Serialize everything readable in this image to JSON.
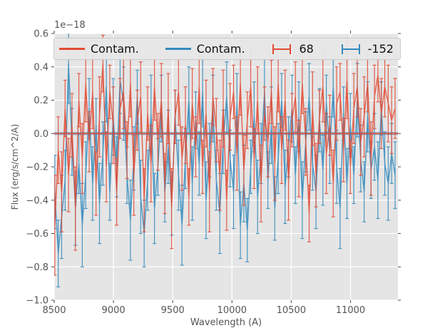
{
  "figure": {
    "offset_text": "1e−18"
  },
  "axes": {
    "xlabel": "Wavelength (A)",
    "ylabel": "Flux (erg/s/cm^2/A)",
    "xlim": [
      8500,
      11400
    ],
    "ylim": [
      -1.0,
      0.6
    ],
    "xticks": [
      8500,
      9000,
      9500,
      10000,
      10500,
      11000
    ],
    "xtick_labels": [
      "8500",
      "9000",
      "9500",
      "10000",
      "10500",
      "11000"
    ],
    "yticks": [
      0.6,
      0.4,
      0.2,
      0.0,
      -0.2,
      -0.4,
      -0.6,
      -0.8,
      -1.0
    ],
    "ytick_labels": [
      "0.6",
      "0.4",
      "0.2",
      "0.0",
      "−0.2",
      "−0.4",
      "−0.6",
      "−0.8",
      "−1.0"
    ],
    "background": "#e5e5e5",
    "grid_color": "#ffffff",
    "tick_color": "#555555",
    "text_color": "#555555"
  },
  "legend": {
    "items": [
      {
        "label": "Contam.",
        "color": "#e24a33",
        "glyph": "line"
      },
      {
        "label": "Contam.",
        "color": "#348abd",
        "glyph": "line"
      },
      {
        "label": "68",
        "color": "#e24a33",
        "glyph": "errorbar"
      },
      {
        "label": "-152",
        "color": "#348abd",
        "glyph": "errorbar"
      }
    ]
  },
  "chart_data": {
    "type": "line",
    "title": "",
    "xlabel": "Wavelength (A)",
    "ylabel": "Flux (erg/s/cm^2/A)",
    "y_unit_multiplier": "1e−18",
    "xlim": [
      8500,
      11400
    ],
    "ylim": [
      -1.0,
      0.6
    ],
    "grid": true,
    "legend_position": "upper center, horizontal, 4 columns",
    "x": [
      8505,
      8534,
      8563,
      8592,
      8621,
      8650,
      8679,
      8708,
      8737,
      8766,
      8795,
      8824,
      8853,
      8882,
      8911,
      8940,
      8969,
      8998,
      9027,
      9056,
      9085,
      9114,
      9143,
      9172,
      9201,
      9230,
      9259,
      9288,
      9317,
      9346,
      9375,
      9404,
      9433,
      9462,
      9491,
      9520,
      9549,
      9578,
      9607,
      9636,
      9665,
      9694,
      9723,
      9752,
      9781,
      9810,
      9839,
      9868,
      9897,
      9926,
      9955,
      9984,
      10013,
      10042,
      10071,
      10100,
      10129,
      10158,
      10187,
      10216,
      10245,
      10274,
      10303,
      10332,
      10361,
      10390,
      10419,
      10448,
      10477,
      10506,
      10535,
      10564,
      10593,
      10622,
      10651,
      10680,
      10709,
      10738,
      10767,
      10796,
      10825,
      10854,
      10883,
      10912,
      10941,
      10970,
      10999,
      11028,
      11057,
      11086,
      11115,
      11144,
      11173,
      11202,
      11231,
      11260,
      11289,
      11318,
      11347,
      11376
    ],
    "series": [
      {
        "name": "Contam.",
        "style": "flat-line",
        "color": "#e24a33",
        "value": 0.0,
        "linewidth": 2.2,
        "opacity": 0.75
      },
      {
        "name": "Contam.",
        "style": "flat-line",
        "color": "#348abd",
        "value": 0.0,
        "linewidth": 4,
        "opacity": 0.5
      },
      {
        "name": "68",
        "style": "errorbar",
        "color": "#e24a33",
        "y": [
          -0.55,
          -0.1,
          -0.35,
          0.15,
          -0.25,
          0.05,
          -0.45,
          0.2,
          -0.15,
          0.3,
          -0.05,
          0.25,
          -0.3,
          0.1,
          0.42,
          -0.2,
          0.25,
          0.05,
          -0.35,
          0.15,
          0.25,
          -0.1,
          0.3,
          -0.25,
          0.08,
          0.22,
          -0.4,
          0.12,
          -0.18,
          0.28,
          -0.05,
          0.2,
          -0.3,
          0.15,
          -0.45,
          0.1,
          0.25,
          -0.15,
          0.05,
          -0.38,
          0.18,
          -0.08,
          0.28,
          -0.2,
          0.12,
          -0.35,
          0.22,
          0.02,
          -0.25,
          0.15,
          -0.4,
          0.1,
          0.25,
          -0.12,
          0.3,
          -0.22,
          0.08,
          0.28,
          -0.15,
          0.2,
          -0.3,
          0.12,
          -0.05,
          0.25,
          -0.18,
          0.3,
          -0.1,
          0.2,
          -0.28,
          0.08,
          0.22,
          -0.15,
          0.3,
          -0.05,
          -0.48,
          0.15,
          -0.25,
          0.1,
          0.28,
          -0.12,
          0.05,
          -0.3,
          0.18,
          0.25,
          -0.1,
          0.32,
          -0.2,
          0.15,
          0.28,
          -0.05,
          0.1,
          0.3,
          -0.15,
          0.22,
          0.35,
          0.12,
          0.28,
          0.18,
          0.08,
          0.15
        ],
        "yerr": [
          0.3,
          0.2,
          0.24,
          0.17,
          0.22,
          0.19,
          0.25,
          0.16,
          0.21,
          0.23,
          0.18,
          0.22,
          0.19,
          0.24,
          0.17,
          0.21,
          0.16,
          0.23,
          0.2,
          0.18,
          0.22,
          0.17,
          0.2,
          0.24,
          0.18,
          0.21,
          0.19,
          0.16,
          0.23,
          0.2,
          0.17,
          0.22,
          0.18,
          0.21,
          0.24,
          0.16,
          0.2,
          0.19,
          0.23,
          0.17,
          0.21,
          0.18,
          0.22,
          0.16,
          0.2,
          0.24,
          0.17,
          0.19,
          0.21,
          0.23,
          0.18,
          0.2,
          0.16,
          0.22,
          0.19,
          0.21,
          0.17,
          0.24,
          0.18,
          0.2,
          0.23,
          0.16,
          0.21,
          0.19,
          0.22,
          0.17,
          0.2,
          0.18,
          0.24,
          0.16,
          0.21,
          0.23,
          0.18,
          0.2,
          0.17,
          0.22,
          0.19,
          0.16,
          0.21,
          0.24,
          0.18,
          0.2,
          0.22,
          0.17,
          0.19,
          0.23,
          0.16,
          0.21,
          0.18,
          0.2,
          0.24,
          0.17,
          0.22,
          0.19,
          0.16,
          0.21,
          0.18,
          0.23,
          0.2,
          0.18
        ]
      },
      {
        "name": "-152",
        "style": "errorbar",
        "color": "#348abd",
        "y": [
          -0.35,
          -0.72,
          -0.5,
          -0.28,
          0.42,
          -0.05,
          -0.45,
          -0.18,
          -0.55,
          -0.25,
          0.15,
          -0.3,
          0.05,
          -0.42,
          -0.12,
          0.28,
          -0.35,
          0.1,
          -0.2,
          0.32,
          0.18,
          -0.25,
          -0.52,
          -0.15,
          0.22,
          -0.38,
          -0.6,
          -0.28,
          0.12,
          -0.45,
          -0.2,
          0.15,
          -0.35,
          -0.08,
          -0.42,
          0.1,
          -0.25,
          -0.55,
          -0.15,
          0.2,
          -0.3,
          0.08,
          -0.18,
          0.25,
          -0.4,
          -0.1,
          0.15,
          -0.28,
          -0.48,
          -0.05,
          0.22,
          -0.15,
          -0.35,
          0.18,
          -0.55,
          -0.3,
          -0.58,
          -0.2,
          0.1,
          -0.38,
          -0.12,
          0.25,
          -0.28,
          0.05,
          -0.45,
          -0.15,
          0.2,
          -0.32,
          -0.08,
          0.15,
          -0.25,
          0.1,
          -0.4,
          -0.05,
          0.22,
          -0.18,
          -0.35,
          0.08,
          -0.22,
          0.18,
          -0.1,
          0.28,
          -0.2,
          -0.45,
          0.12,
          -0.3,
          0.05,
          -0.25,
          0.2,
          -0.15,
          -0.35,
          0.1,
          -0.22,
          -0.08,
          -0.28,
          0.15,
          -0.18,
          -0.3,
          -0.12,
          -0.25
        ],
        "yerr": [
          0.22,
          0.2,
          0.25,
          0.18,
          0.24,
          0.2,
          0.22,
          0.18,
          0.25,
          0.2,
          0.18,
          0.22,
          0.16,
          0.24,
          0.19,
          0.21,
          0.17,
          0.23,
          0.18,
          0.2,
          0.22,
          0.17,
          0.24,
          0.19,
          0.16,
          0.22,
          0.2,
          0.18,
          0.23,
          0.21,
          0.17,
          0.2,
          0.18,
          0.22,
          0.19,
          0.16,
          0.21,
          0.24,
          0.18,
          0.2,
          0.22,
          0.17,
          0.19,
          0.21,
          0.23,
          0.16,
          0.2,
          0.18,
          0.24,
          0.19,
          0.21,
          0.17,
          0.22,
          0.18,
          0.2,
          0.23,
          0.19,
          0.16,
          0.21,
          0.22,
          0.18,
          0.2,
          0.17,
          0.23,
          0.19,
          0.21,
          0.16,
          0.22,
          0.18,
          0.2,
          0.17,
          0.21,
          0.23,
          0.18,
          0.2,
          0.16,
          0.22,
          0.19,
          0.21,
          0.17,
          0.2,
          0.18,
          0.22,
          0.24,
          0.16,
          0.21,
          0.19,
          0.17,
          0.22,
          0.2,
          0.18,
          0.21,
          0.17,
          0.2,
          0.23,
          0.16,
          0.19,
          0.22,
          0.18,
          0.2
        ]
      }
    ]
  }
}
